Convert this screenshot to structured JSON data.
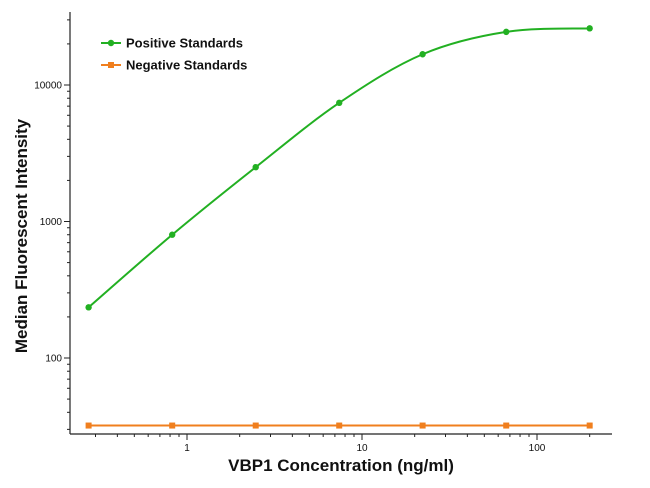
{
  "chart_data": {
    "type": "line",
    "title": "",
    "xlabel": "VBP1 Concentration (ng/ml)",
    "ylabel": "Median Fluorescent Intensity",
    "x_scale": "log",
    "y_scale": "log",
    "xlim": [
      0.23,
      260
    ],
    "ylim": [
      35,
      30000
    ],
    "x_tick_values": [
      1,
      10,
      100
    ],
    "x_tick_labels": [
      "1",
      "10",
      "100"
    ],
    "y_tick_values": [
      100,
      1000,
      10000
    ],
    "y_tick_labels": [
      "100",
      "1000",
      "10000"
    ],
    "grid": false,
    "legend": "top-left",
    "x": [
      0.274,
      0.823,
      2.47,
      7.41,
      22.2,
      66.7,
      200
    ],
    "series": [
      {
        "name": "Positive Standards",
        "color": "#22b022",
        "marker": "circle",
        "values": [
          235,
          800,
          2500,
          7400,
          16800,
          24500,
          26000
        ]
      },
      {
        "name": "Negative Standards",
        "color": "#f07f1e",
        "marker": "square",
        "values": [
          32,
          32,
          32,
          32,
          32,
          32,
          32
        ]
      }
    ]
  }
}
